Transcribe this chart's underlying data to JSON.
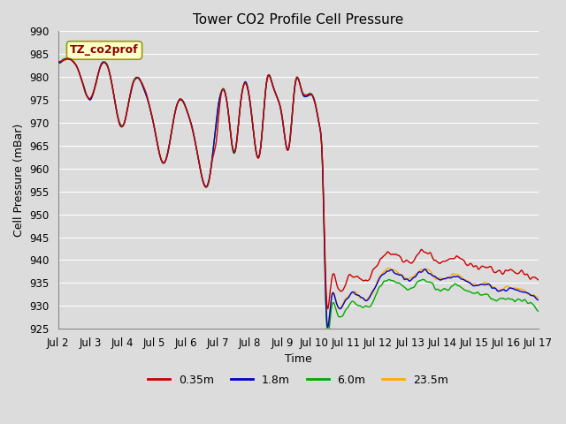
{
  "title": "Tower CO2 Profile Cell Pressure",
  "xlabel": "Time",
  "ylabel": "Cell Pressure (mBar)",
  "ylim": [
    925,
    990
  ],
  "yticks": [
    925,
    930,
    935,
    940,
    945,
    950,
    955,
    960,
    965,
    970,
    975,
    980,
    985,
    990
  ],
  "xtick_labels": [
    "Jul 2",
    "Jul 3",
    "Jul 4",
    "Jul 5",
    "Jul 6",
    "Jul 7",
    "Jul 8",
    "Jul 9",
    "Jul 10",
    "Jul 11",
    "Jul 12",
    "Jul 13",
    "Jul 14",
    "Jul 15",
    "Jul 16",
    "Jul 17"
  ],
  "series_colors": [
    "#cc0000",
    "#0000cc",
    "#00aa00",
    "#ffaa00"
  ],
  "series_labels": [
    "0.35m",
    "1.8m",
    "6.0m",
    "23.5m"
  ],
  "annotation_text": "TZ_co2prof",
  "annotation_bg": "#ffffcc",
  "annotation_border": "#cccc00",
  "bg_color": "#dcdcdc",
  "plot_bg": "#dcdcdc",
  "grid_color": "#ffffff",
  "title_fontsize": 11,
  "axis_fontsize": 9,
  "tick_fontsize": 8.5
}
